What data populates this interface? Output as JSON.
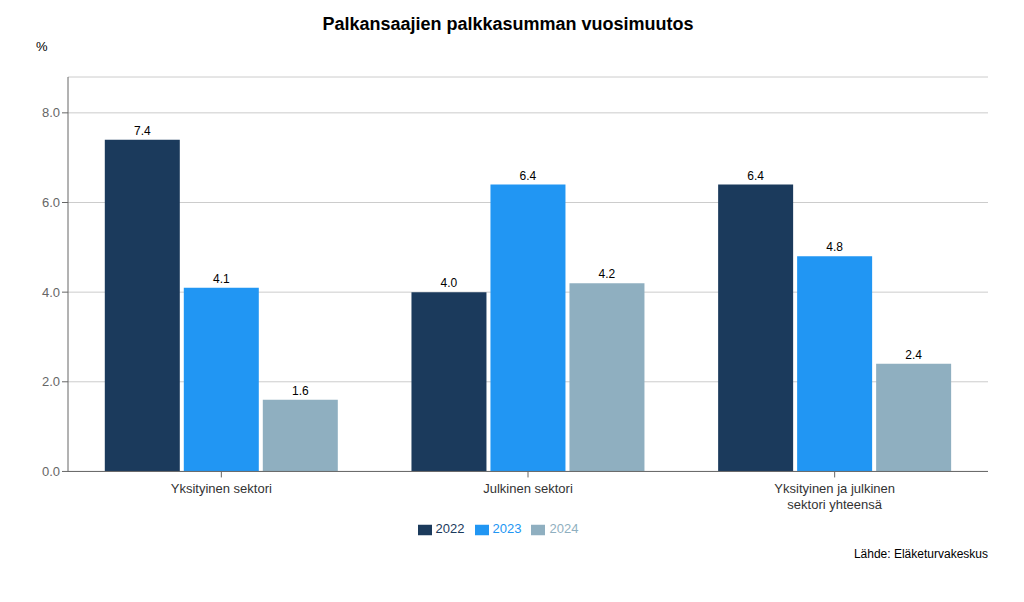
{
  "chart_data": {
    "type": "bar",
    "title": "Palkansaajien palkkasumman vuosimuutos",
    "ylabel": "%",
    "annotations": [
      "Lähde: Eläketurvakeskus"
    ],
    "categories": [
      "Yksityinen sektori",
      "Julkinen sektori",
      "Yksityinen ja julkinen\nsektori yhteensä"
    ],
    "series": [
      {
        "name": "2022",
        "color": "#1b3a5c",
        "values": [
          7.4,
          4.0,
          6.4
        ],
        "value_labels": [
          "7.4",
          "4.0",
          "6.4"
        ]
      },
      {
        "name": "2023",
        "color": "#2196f3",
        "values": [
          4.1,
          6.4,
          4.8
        ],
        "value_labels": [
          "4.1",
          "6.4",
          "4.8"
        ]
      },
      {
        "name": "2024",
        "color": "#8fafc0",
        "values": [
          1.6,
          4.2,
          2.4
        ],
        "value_labels": [
          "1.6",
          "4.2",
          "2.4"
        ]
      }
    ],
    "ylim": [
      0,
      8.8
    ],
    "yticks": [
      {
        "value": 0,
        "label": "0.0"
      },
      {
        "value": 2,
        "label": "2.0"
      },
      {
        "value": 4,
        "label": "4.0"
      },
      {
        "value": 6,
        "label": "6.0"
      },
      {
        "value": 8,
        "label": "8.0"
      }
    ],
    "grid": true,
    "legend": "bottom",
    "data_labels": true
  }
}
